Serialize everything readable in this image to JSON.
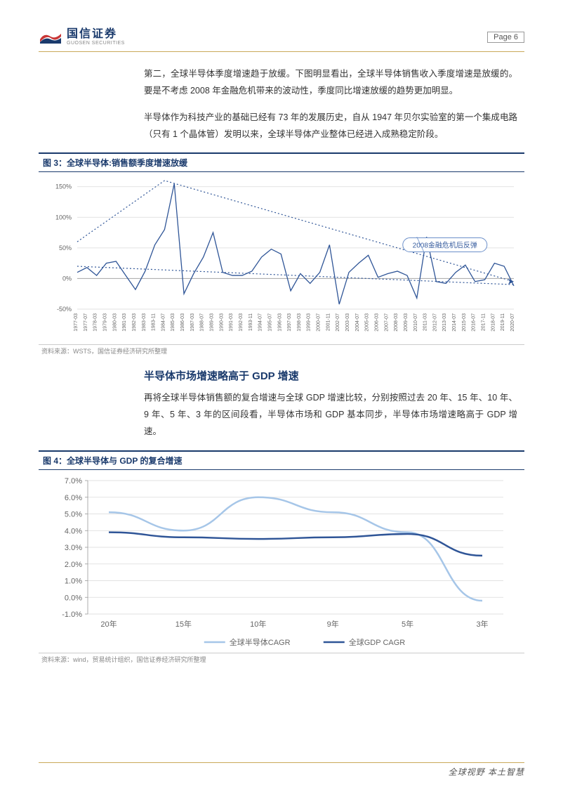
{
  "header": {
    "company_cn": "国信证券",
    "company_en": "GUOSEN SECURITIES",
    "page_label": "Page   6"
  },
  "para1": "第二，全球半导体季度增速趋于放缓。下图明显看出，全球半导体销售收入季度增速是放缓的。要是不考虑 2008 年金融危机带来的波动性，季度同比增速放缓的趋势更加明显。",
  "para2": "半导体作为科技产业的基础已经有 73 年的发展历史，自从 1947 年贝尔实验室的第一个集成电路（只有 1 个晶体管）发明以来，全球半导体产业整体已经进入成熟稳定阶段。",
  "fig3": {
    "title": "图 3：全球半导体:销售额季度增速放缓",
    "source": "资料来源：WSTS，国信证券经济研究所整理",
    "type": "line",
    "ylim": [
      -50,
      160
    ],
    "yticks": [
      -50,
      0,
      50,
      100,
      150
    ],
    "ytick_labels": [
      "-50%",
      "0%",
      "50%",
      "100%",
      "150%"
    ],
    "x_categories": [
      "1977-03",
      "1977-07",
      "1978-03",
      "1979-03",
      "1980-03",
      "1981-03",
      "1982-03",
      "1983-03",
      "1983-11",
      "1984-07",
      "1985-03",
      "1986-03",
      "1987-03",
      "1988-07",
      "1989-03",
      "1990-03",
      "1991-03",
      "1992-03",
      "1993-11",
      "1994-07",
      "1995-07",
      "1996-03",
      "1997-03",
      "1998-03",
      "1999-03",
      "2000-07",
      "2001-11",
      "2002-07",
      "2003-03",
      "2004-07",
      "2005-03",
      "2006-03",
      "2007-07",
      "2008-03",
      "2009-03",
      "2010-07",
      "2011-03",
      "2012-07",
      "2013-03",
      "2014-07",
      "2015-03",
      "2016-07",
      "2017-11",
      "2018-07",
      "2019-11",
      "2020-07"
    ],
    "values": [
      10,
      18,
      5,
      25,
      28,
      5,
      -18,
      12,
      55,
      80,
      155,
      -25,
      8,
      35,
      75,
      10,
      5,
      5,
      12,
      35,
      48,
      40,
      -20,
      8,
      -8,
      10,
      55,
      -42,
      10,
      25,
      38,
      2,
      8,
      12,
      5,
      -32,
      68,
      -5,
      -8,
      10,
      22,
      -5,
      -2,
      25,
      20,
      -12
    ],
    "line_color": "#2f5597",
    "trend_color": "#2f5597",
    "trend_style": "dotted",
    "trend_top_start_y": 60,
    "trend_top_end_y": -5,
    "trend_top_peak_y": 160,
    "trend_bot_start_y": 20,
    "trend_bot_end_y": -10,
    "grid_color": "#d9d9d9",
    "axis_color": "#888",
    "annotation": "2008金融危机后反弹"
  },
  "section2_title": "半导体市场增速略高于 GDP 增速",
  "para3": "再将全球半导体销售额的复合增速与全球 GDP 增速比较，分别按照过去 20 年、15 年、10 年、9 年、5 年、3 年的区间段看，半导体市场和 GDP 基本同步，半导体市场增速略高于 GDP 增速。",
  "fig4": {
    "title": "图 4：全球半导体与 GDP 的复合增速",
    "source": "资料来源：wind，贸易统计组织，国信证券经济研究所整理",
    "type": "line",
    "ylim": [
      -1,
      7
    ],
    "yticks": [
      -1,
      0,
      1,
      2,
      3,
      4,
      5,
      6,
      7
    ],
    "ytick_labels": [
      "-1.0%",
      "0.0%",
      "1.0%",
      "2.0%",
      "3.0%",
      "4.0%",
      "5.0%",
      "6.0%",
      "7.0%"
    ],
    "x_categories": [
      "20年",
      "15年",
      "10年",
      "9年",
      "5年",
      "3年"
    ],
    "series": [
      {
        "name": "全球半导体CAGR",
        "color": "#a6c6e8",
        "width": 2.5,
        "values": [
          5.1,
          4.0,
          6.0,
          5.1,
          3.9,
          -0.2
        ]
      },
      {
        "name": "全球GDP CAGR",
        "color": "#2f5597",
        "width": 2.5,
        "values": [
          3.9,
          3.6,
          3.5,
          3.6,
          3.8,
          2.5
        ]
      }
    ],
    "grid_color": "#d9d9d9",
    "tick_font_size": 11,
    "label_color": "#666"
  },
  "footer": {
    "text": "全球视野   本土智慧"
  }
}
